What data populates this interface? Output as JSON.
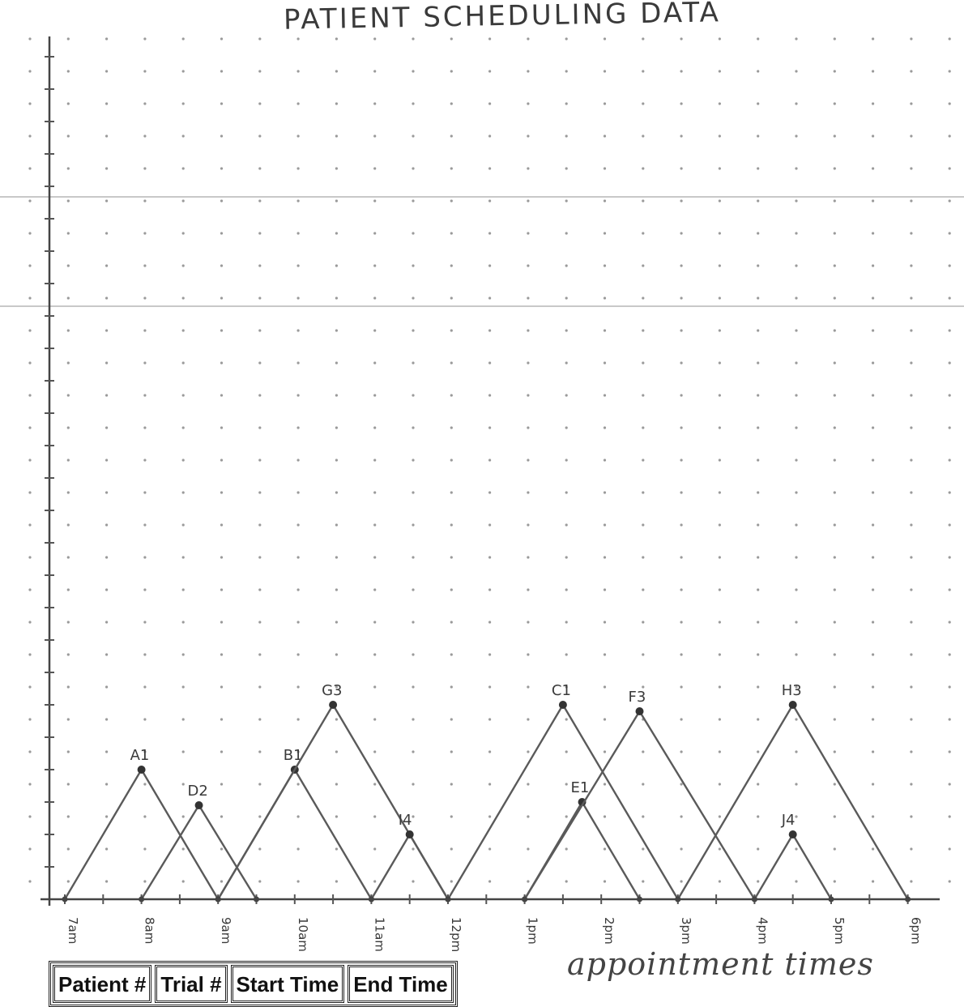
{
  "title": "PATIENT SCHEDULING DATA",
  "xlabel": "appointment times",
  "table": {
    "headers": [
      "Patient #",
      "Trial #",
      "Start Time",
      "End Time"
    ]
  },
  "chart_data": {
    "type": "line",
    "title": "PATIENT SCHEDULING DATA",
    "xlabel": "appointment times",
    "ylabel": "",
    "x_ticks": [
      {
        "hour": 7,
        "label": "7am"
      },
      {
        "hour": 8,
        "label": "8am"
      },
      {
        "hour": 9,
        "label": "9am"
      },
      {
        "hour": 10,
        "label": "10am"
      },
      {
        "hour": 11,
        "label": "11am"
      },
      {
        "hour": 12,
        "label": "12pm"
      },
      {
        "hour": 13,
        "label": "1pm"
      },
      {
        "hour": 14,
        "label": "2pm"
      },
      {
        "hour": 15,
        "label": "3pm"
      },
      {
        "hour": 16,
        "label": "4pm"
      },
      {
        "hour": 17,
        "label": "5pm"
      },
      {
        "hour": 18,
        "label": "6pm"
      }
    ],
    "xlim": [
      7,
      18
    ],
    "ylim": [
      0,
      26
    ],
    "grid": "dot",
    "series": [
      {
        "name": "A1",
        "start": 7.0,
        "peak": 8.0,
        "end": 9.0,
        "height": 4.0
      },
      {
        "name": "D2",
        "start": 8.0,
        "peak": 8.75,
        "end": 9.5,
        "height": 2.9
      },
      {
        "name": "B1",
        "start": 9.0,
        "peak": 10.0,
        "end": 11.0,
        "height": 4.0
      },
      {
        "name": "G3",
        "start": 9.0,
        "peak": 10.5,
        "end": 12.0,
        "height": 6.0
      },
      {
        "name": "I4",
        "start": 11.0,
        "peak": 11.5,
        "end": 12.0,
        "height": 2.0
      },
      {
        "name": "C1",
        "start": 12.0,
        "peak": 13.5,
        "end": 15.0,
        "height": 6.0
      },
      {
        "name": "E1",
        "start": 13.0,
        "peak": 13.75,
        "end": 14.5,
        "height": 3.0
      },
      {
        "name": "F3",
        "start": 13.0,
        "peak": 14.5,
        "end": 16.0,
        "height": 5.8
      },
      {
        "name": "H3",
        "start": 15.0,
        "peak": 16.5,
        "end": 18.0,
        "height": 6.0
      },
      {
        "name": "J4",
        "start": 16.0,
        "peak": 16.5,
        "end": 17.0,
        "height": 2.0
      }
    ]
  }
}
